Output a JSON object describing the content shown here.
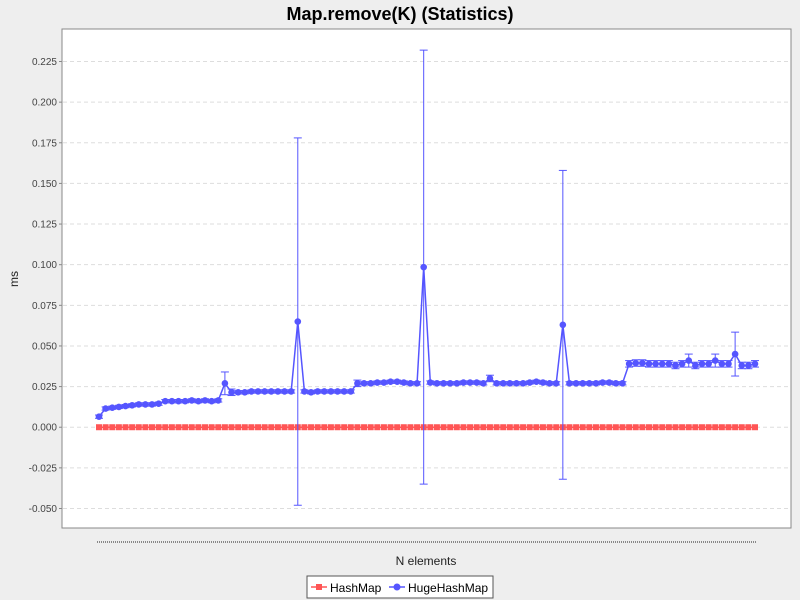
{
  "chart_data": {
    "type": "line",
    "title": "Map.remove(K) (Statistics)",
    "xlabel": "N elements",
    "ylabel": "ms",
    "ylim": [
      -0.062,
      0.245
    ],
    "yticks": [
      "0.225",
      "0.200",
      "0.175",
      "0.150",
      "0.125",
      "0.100",
      "0.075",
      "0.050",
      "0.025",
      "0.000",
      "-0.025",
      "-0.050"
    ],
    "ytick_values": [
      0.225,
      0.2,
      0.175,
      0.15,
      0.125,
      0.1,
      0.075,
      0.05,
      0.025,
      0.0,
      -0.025,
      -0.05
    ],
    "grid": true,
    "legend_position": "bottom",
    "n_points": 100,
    "series": [
      {
        "name": "HashMap",
        "color": "#ff5555",
        "marker": "square",
        "values": [
          0,
          0,
          0,
          0,
          0,
          0,
          0,
          0,
          0,
          0,
          0,
          0,
          0,
          0,
          0,
          0,
          0,
          0,
          0,
          0,
          0,
          0,
          0,
          0,
          0,
          0,
          0,
          0,
          0,
          0,
          0,
          0,
          0,
          0,
          0,
          0,
          0,
          0,
          0,
          0,
          0,
          0,
          0,
          0,
          0,
          0,
          0,
          0,
          0,
          0,
          0,
          0,
          0,
          0,
          0,
          0,
          0,
          0,
          0,
          0,
          0,
          0,
          0,
          0,
          0,
          0,
          0,
          0,
          0,
          0,
          0,
          0,
          0,
          0,
          0,
          0,
          0,
          0,
          0,
          0,
          0,
          0,
          0,
          0,
          0,
          0,
          0,
          0,
          0,
          0,
          0,
          0,
          0,
          0,
          0,
          0,
          0,
          0,
          0,
          0
        ]
      },
      {
        "name": "HugeHashMap",
        "color": "#5555ff",
        "marker": "circle",
        "values": [
          0.0065,
          0.0115,
          0.012,
          0.0125,
          0.013,
          0.0135,
          0.014,
          0.014,
          0.014,
          0.0145,
          0.016,
          0.016,
          0.016,
          0.016,
          0.0165,
          0.016,
          0.0165,
          0.016,
          0.0165,
          0.027,
          0.0215,
          0.0215,
          0.0215,
          0.022,
          0.022,
          0.022,
          0.022,
          0.022,
          0.022,
          0.022,
          0.065,
          0.022,
          0.0215,
          0.022,
          0.022,
          0.022,
          0.022,
          0.022,
          0.022,
          0.027,
          0.027,
          0.027,
          0.0275,
          0.0275,
          0.028,
          0.028,
          0.0275,
          0.027,
          0.027,
          0.0985,
          0.0275,
          0.027,
          0.027,
          0.027,
          0.027,
          0.0275,
          0.0275,
          0.0275,
          0.027,
          0.03,
          0.027,
          0.027,
          0.027,
          0.027,
          0.027,
          0.0275,
          0.028,
          0.0275,
          0.027,
          0.027,
          0.063,
          0.027,
          0.027,
          0.027,
          0.027,
          0.027,
          0.0275,
          0.0275,
          0.027,
          0.027,
          0.039,
          0.0395,
          0.0395,
          0.039,
          0.039,
          0.039,
          0.039,
          0.038,
          0.039,
          0.041,
          0.038,
          0.039,
          0.039,
          0.041,
          0.039,
          0.039,
          0.045,
          0.038,
          0.038,
          0.039
        ],
        "errors": [
          0.001,
          0.001,
          0.001,
          0.001,
          0.001,
          0.001,
          0.001,
          0.001,
          0.001,
          0.001,
          0.001,
          0.001,
          0.001,
          0.001,
          0.001,
          0.001,
          0.001,
          0.001,
          0.001,
          0.007,
          0.002,
          0.001,
          0.001,
          0.001,
          0.001,
          0.001,
          0.001,
          0.001,
          0.001,
          0.001,
          0.113,
          0.001,
          0.001,
          0.001,
          0.001,
          0.001,
          0.001,
          0.001,
          0.001,
          0.002,
          0.001,
          0.001,
          0.001,
          0.001,
          0.001,
          0.001,
          0.001,
          0.001,
          0.001,
          0.1335,
          0.001,
          0.001,
          0.001,
          0.001,
          0.001,
          0.001,
          0.001,
          0.001,
          0.001,
          0.002,
          0.001,
          0.001,
          0.001,
          0.001,
          0.001,
          0.001,
          0.001,
          0.001,
          0.001,
          0.001,
          0.095,
          0.001,
          0.001,
          0.001,
          0.001,
          0.001,
          0.001,
          0.001,
          0.001,
          0.001,
          0.002,
          0.002,
          0.002,
          0.002,
          0.002,
          0.002,
          0.002,
          0.002,
          0.002,
          0.004,
          0.002,
          0.002,
          0.002,
          0.004,
          0.002,
          0.002,
          0.0135,
          0.002,
          0.002,
          0.002
        ]
      }
    ]
  }
}
